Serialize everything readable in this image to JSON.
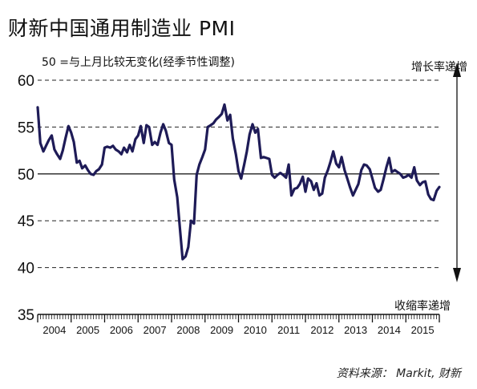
{
  "chart_data": {
    "type": "line",
    "title": "财新中国通用制造业 PMI",
    "subtitle": "50 =与上月比较无变化(经季节性调整)",
    "annotation_up": "增长率递增",
    "annotation_down": "收缩率递增",
    "source": "资料来源： Markit, 财新",
    "y_ticks": [
      "60",
      "55",
      "50",
      "45",
      "40",
      "35"
    ],
    "ylim": [
      35,
      60
    ],
    "x_ticks": [
      "2004",
      "2005",
      "2006",
      "2007",
      "2008",
      "2009",
      "2010",
      "2011",
      "2012",
      "2013",
      "2014",
      "2015"
    ],
    "reference_line": 50,
    "grid": "dashed horizontal",
    "colors": {
      "series": "#1e1b57",
      "grid": "#222222"
    },
    "series": [
      {
        "values": [
          [
            2004.0,
            57.1
          ],
          [
            2004.08,
            53.3
          ],
          [
            2004.17,
            52.4
          ],
          [
            2004.25,
            53.0
          ],
          [
            2004.33,
            53.6
          ],
          [
            2004.42,
            54.1
          ],
          [
            2004.5,
            52.6
          ],
          [
            2004.58,
            52.1
          ],
          [
            2004.67,
            51.6
          ],
          [
            2004.75,
            52.5
          ],
          [
            2004.83,
            53.8
          ],
          [
            2004.92,
            55.1
          ],
          [
            2005.0,
            54.4
          ],
          [
            2005.08,
            53.4
          ],
          [
            2005.17,
            51.2
          ],
          [
            2005.25,
            51.4
          ],
          [
            2005.33,
            50.6
          ],
          [
            2005.42,
            50.9
          ],
          [
            2005.5,
            50.4
          ],
          [
            2005.58,
            50.0
          ],
          [
            2005.67,
            49.9
          ],
          [
            2005.75,
            50.3
          ],
          [
            2005.83,
            50.5
          ],
          [
            2005.92,
            51.0
          ],
          [
            2006.0,
            52.8
          ],
          [
            2006.08,
            52.9
          ],
          [
            2006.17,
            52.8
          ],
          [
            2006.25,
            53.0
          ],
          [
            2006.33,
            52.6
          ],
          [
            2006.42,
            52.4
          ],
          [
            2006.5,
            52.1
          ],
          [
            2006.58,
            52.8
          ],
          [
            2006.67,
            52.3
          ],
          [
            2006.75,
            53.1
          ],
          [
            2006.83,
            52.4
          ],
          [
            2006.92,
            53.7
          ],
          [
            2007.0,
            54.1
          ],
          [
            2007.08,
            55.1
          ],
          [
            2007.17,
            53.3
          ],
          [
            2007.25,
            55.2
          ],
          [
            2007.33,
            55.0
          ],
          [
            2007.42,
            53.1
          ],
          [
            2007.5,
            53.4
          ],
          [
            2007.58,
            53.1
          ],
          [
            2007.67,
            54.4
          ],
          [
            2007.75,
            55.3
          ],
          [
            2007.83,
            54.6
          ],
          [
            2007.92,
            53.3
          ],
          [
            2008.0,
            53.1
          ],
          [
            2008.08,
            49.4
          ],
          [
            2008.17,
            47.5
          ],
          [
            2008.25,
            44.2
          ],
          [
            2008.33,
            40.9
          ],
          [
            2008.42,
            41.2
          ],
          [
            2008.5,
            42.2
          ],
          [
            2008.58,
            45.0
          ],
          [
            2008.67,
            44.7
          ],
          [
            2008.75,
            49.9
          ],
          [
            2008.83,
            51.0
          ],
          [
            2008.92,
            51.8
          ],
          [
            2009.0,
            52.6
          ],
          [
            2009.08,
            55.0
          ],
          [
            2009.17,
            55.2
          ],
          [
            2009.25,
            55.4
          ],
          [
            2009.33,
            55.8
          ],
          [
            2009.42,
            56.1
          ],
          [
            2009.5,
            56.4
          ],
          [
            2009.58,
            57.4
          ],
          [
            2009.67,
            55.7
          ],
          [
            2009.75,
            56.3
          ],
          [
            2009.83,
            53.8
          ],
          [
            2009.92,
            52.1
          ],
          [
            2010.0,
            50.3
          ],
          [
            2010.08,
            49.5
          ],
          [
            2010.17,
            51.0
          ],
          [
            2010.25,
            52.4
          ],
          [
            2010.33,
            54.2
          ],
          [
            2010.42,
            55.3
          ],
          [
            2010.5,
            54.4
          ],
          [
            2010.58,
            54.8
          ],
          [
            2010.67,
            51.7
          ],
          [
            2010.75,
            51.8
          ],
          [
            2010.83,
            51.7
          ],
          [
            2010.92,
            51.6
          ],
          [
            2011.0,
            49.9
          ],
          [
            2011.08,
            49.6
          ],
          [
            2011.17,
            49.9
          ],
          [
            2011.25,
            50.1
          ],
          [
            2011.33,
            49.9
          ],
          [
            2011.42,
            49.6
          ],
          [
            2011.5,
            51.0
          ],
          [
            2011.58,
            47.7
          ],
          [
            2011.67,
            48.4
          ],
          [
            2011.75,
            48.5
          ],
          [
            2011.83,
            48.9
          ],
          [
            2011.92,
            49.7
          ],
          [
            2012.0,
            48.1
          ],
          [
            2012.08,
            49.5
          ],
          [
            2012.17,
            49.2
          ],
          [
            2012.25,
            48.3
          ],
          [
            2012.33,
            49.0
          ],
          [
            2012.42,
            47.7
          ],
          [
            2012.5,
            47.9
          ],
          [
            2012.58,
            49.6
          ],
          [
            2012.67,
            50.4
          ],
          [
            2012.75,
            51.3
          ],
          [
            2012.83,
            52.4
          ],
          [
            2012.92,
            51.1
          ],
          [
            2013.0,
            50.7
          ],
          [
            2013.08,
            51.8
          ],
          [
            2013.17,
            50.4
          ],
          [
            2013.25,
            49.5
          ],
          [
            2013.33,
            48.6
          ],
          [
            2013.42,
            47.7
          ],
          [
            2013.5,
            48.3
          ],
          [
            2013.58,
            48.9
          ],
          [
            2013.67,
            50.4
          ],
          [
            2013.75,
            51.0
          ],
          [
            2013.83,
            50.9
          ],
          [
            2013.92,
            50.5
          ],
          [
            2014.0,
            49.5
          ],
          [
            2014.08,
            48.5
          ],
          [
            2014.17,
            48.1
          ],
          [
            2014.25,
            48.3
          ],
          [
            2014.33,
            49.4
          ],
          [
            2014.42,
            50.7
          ],
          [
            2014.5,
            51.7
          ],
          [
            2014.58,
            50.2
          ],
          [
            2014.67,
            50.4
          ],
          [
            2014.75,
            50.2
          ],
          [
            2014.83,
            50.0
          ],
          [
            2014.92,
            49.6
          ],
          [
            2015.0,
            49.7
          ],
          [
            2015.08,
            49.9
          ],
          [
            2015.17,
            49.6
          ],
          [
            2015.25,
            50.7
          ],
          [
            2015.33,
            49.3
          ],
          [
            2015.42,
            48.8
          ],
          [
            2015.5,
            49.1
          ],
          [
            2015.58,
            49.2
          ],
          [
            2015.67,
            47.8
          ],
          [
            2015.75,
            47.3
          ],
          [
            2015.83,
            47.2
          ],
          [
            2015.92,
            48.2
          ],
          [
            2016.0,
            48.6
          ]
        ]
      }
    ]
  }
}
